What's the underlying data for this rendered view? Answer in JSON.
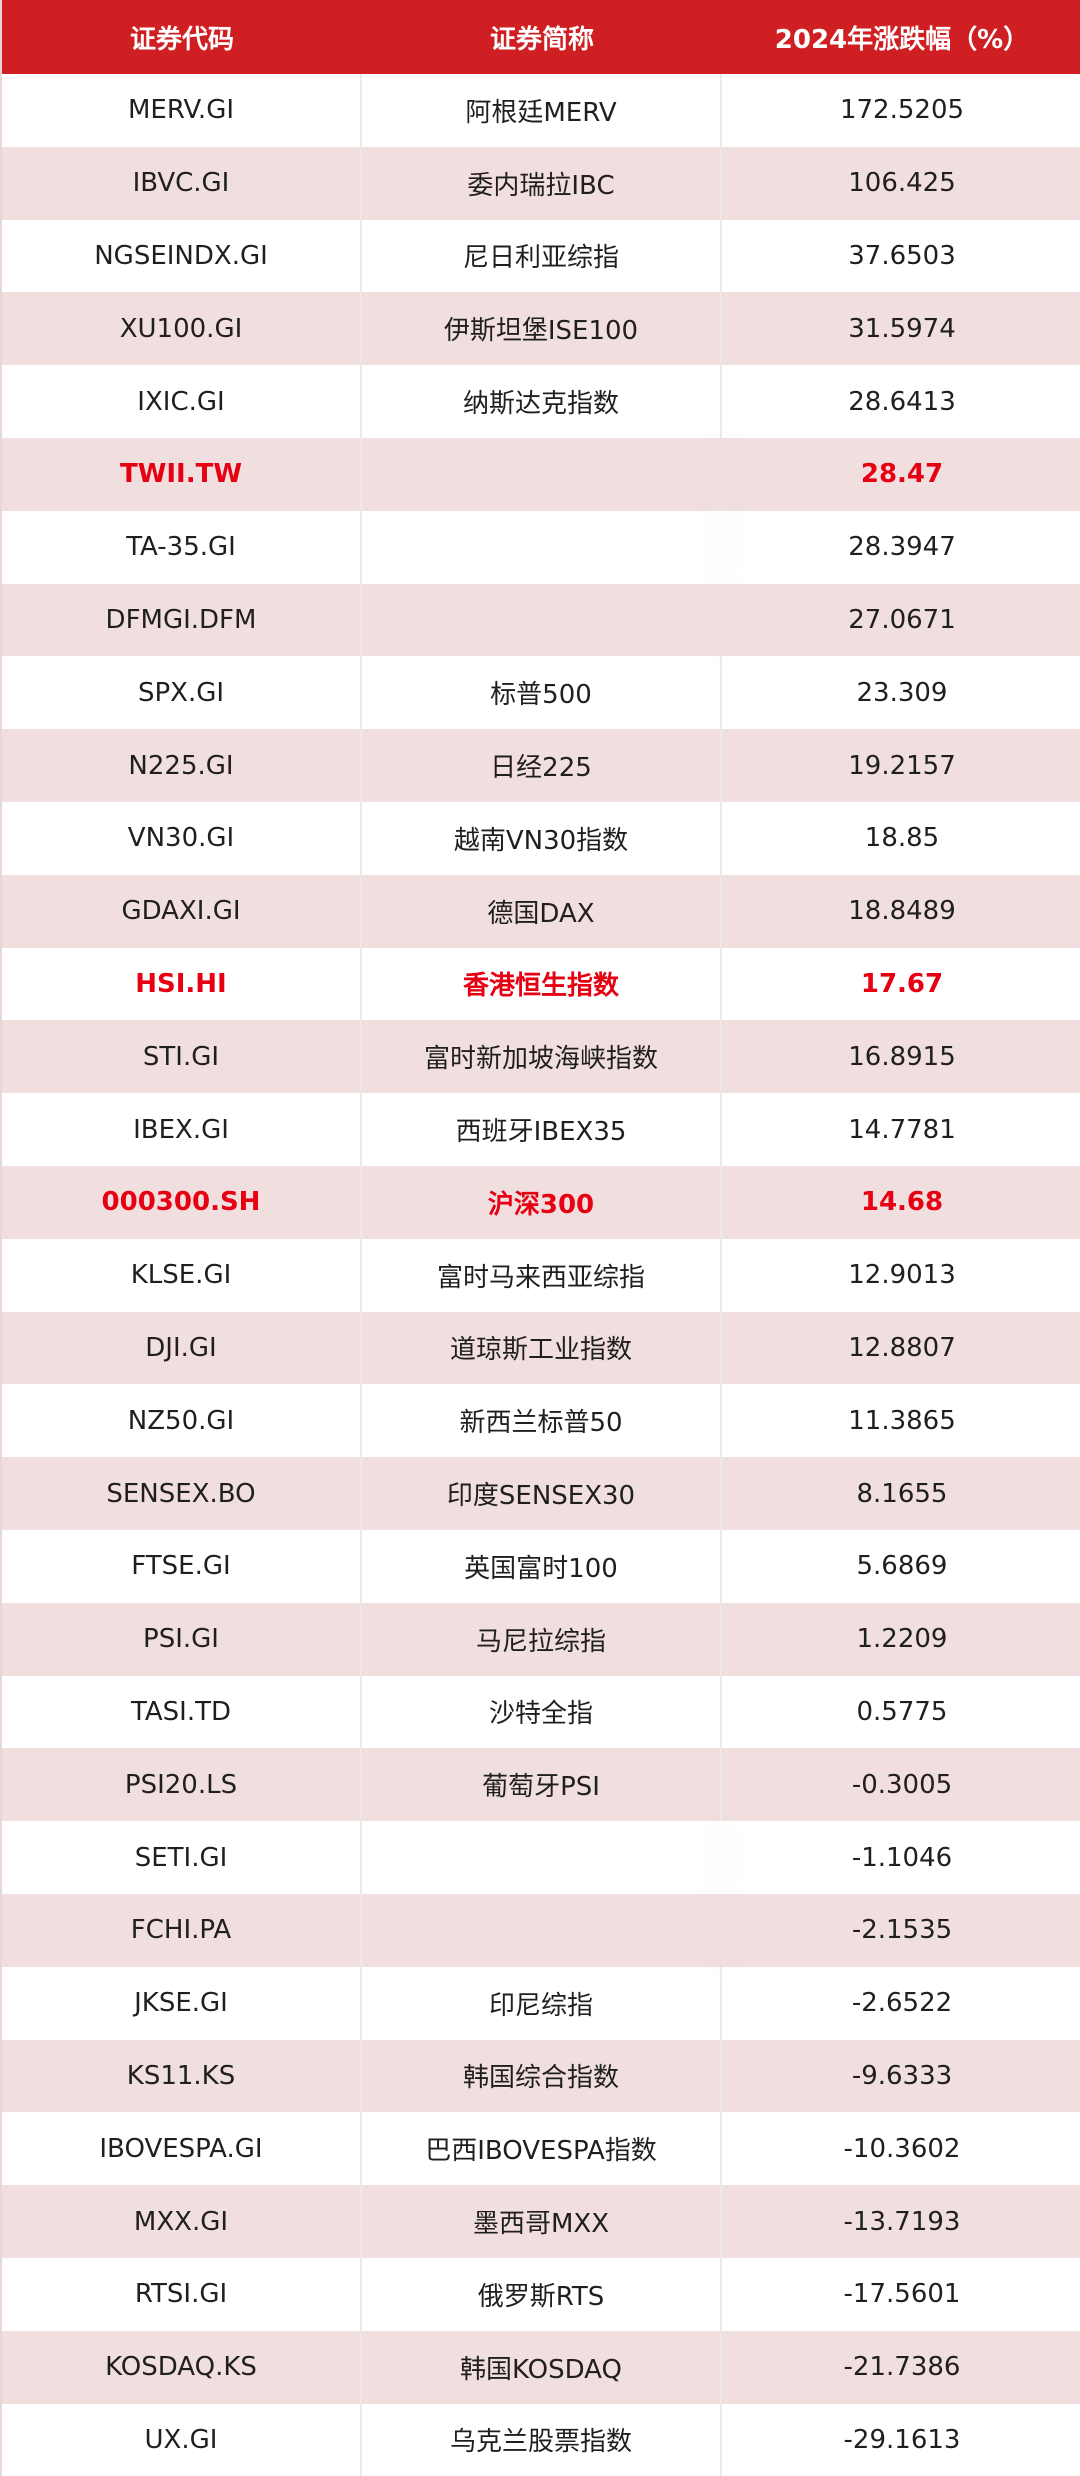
{
  "header": {
    "col1": "证券代码",
    "col2": "证券简称",
    "col3": "2024年涨跌幅（%）"
  },
  "colors": {
    "header_bg": "#cf1f22",
    "highlight_text": "#e60012",
    "stripe_bg": "#f1dede"
  },
  "rows": [
    {
      "code": "MERV.GI",
      "name": "阿根廷MERV",
      "change": "172.5205",
      "highlight": false,
      "blur_name": false
    },
    {
      "code": "IBVC.GI",
      "name": "委内瑞拉IBC",
      "change": "106.425",
      "highlight": false,
      "blur_name": false
    },
    {
      "code": "NGSEINDX.GI",
      "name": "尼日利亚综指",
      "change": "37.6503",
      "highlight": false,
      "blur_name": false
    },
    {
      "code": "XU100.GI",
      "name": "伊斯坦堡ISE100",
      "change": "31.5974",
      "highlight": false,
      "blur_name": false
    },
    {
      "code": "IXIC.GI",
      "name": "纳斯达克指数",
      "change": "28.6413",
      "highlight": false,
      "blur_name": false
    },
    {
      "code": "TWII.TW",
      "name": "",
      "change": "28.47",
      "highlight": true,
      "blur_name": true
    },
    {
      "code": "TA-35.GI",
      "name": "",
      "change": "28.3947",
      "highlight": false,
      "blur_name": true
    },
    {
      "code": "DFMGI.DFM",
      "name": "",
      "change": "27.0671",
      "highlight": false,
      "blur_name": true
    },
    {
      "code": "SPX.GI",
      "name": "标普500",
      "change": "23.309",
      "highlight": false,
      "blur_name": false
    },
    {
      "code": "N225.GI",
      "name": "日经225",
      "change": "19.2157",
      "highlight": false,
      "blur_name": false
    },
    {
      "code": "VN30.GI",
      "name": "越南VN30指数",
      "change": "18.85",
      "highlight": false,
      "blur_name": false
    },
    {
      "code": "GDAXI.GI",
      "name": "德国DAX",
      "change": "18.8489",
      "highlight": false,
      "blur_name": false
    },
    {
      "code": "HSI.HI",
      "name": "香港恒生指数",
      "change": "17.67",
      "highlight": true,
      "blur_name": false
    },
    {
      "code": "STI.GI",
      "name": "富时新加坡海峡指数",
      "change": "16.8915",
      "highlight": false,
      "blur_name": false
    },
    {
      "code": "IBEX.GI",
      "name": "西班牙IBEX35",
      "change": "14.7781",
      "highlight": false,
      "blur_name": false
    },
    {
      "code": "000300.SH",
      "name": "沪深300",
      "change": "14.68",
      "highlight": true,
      "blur_name": false
    },
    {
      "code": "KLSE.GI",
      "name": "富时马来西亚综指",
      "change": "12.9013",
      "highlight": false,
      "blur_name": false
    },
    {
      "code": "DJI.GI",
      "name": "道琼斯工业指数",
      "change": "12.8807",
      "highlight": false,
      "blur_name": false
    },
    {
      "code": "NZ50.GI",
      "name": "新西兰标普50",
      "change": "11.3865",
      "highlight": false,
      "blur_name": false
    },
    {
      "code": "SENSEX.BO",
      "name": "印度SENSEX30",
      "change": "8.1655",
      "highlight": false,
      "blur_name": false
    },
    {
      "code": "FTSE.GI",
      "name": "英国富时100",
      "change": "5.6869",
      "highlight": false,
      "blur_name": false
    },
    {
      "code": "PSI.GI",
      "name": "马尼拉综指",
      "change": "1.2209",
      "highlight": false,
      "blur_name": false
    },
    {
      "code": "TASI.TD",
      "name": "沙特全指",
      "change": "0.5775",
      "highlight": false,
      "blur_name": false
    },
    {
      "code": "PSI20.LS",
      "name": "葡萄牙PSI",
      "change": "-0.3005",
      "highlight": false,
      "blur_name": false
    },
    {
      "code": "SETI.GI",
      "name": "",
      "change": "-1.1046",
      "highlight": false,
      "blur_name": true
    },
    {
      "code": "FCHI.PA",
      "name": "",
      "change": "-2.1535",
      "highlight": false,
      "blur_name": true
    },
    {
      "code": "JKSE.GI",
      "name": "印尼综指",
      "change": "-2.6522",
      "highlight": false,
      "blur_name": false
    },
    {
      "code": "KS11.KS",
      "name": "韩国综合指数",
      "change": "-9.6333",
      "highlight": false,
      "blur_name": false
    },
    {
      "code": "IBOVESPA.GI",
      "name": "巴西IBOVESPA指数",
      "change": "-10.3602",
      "highlight": false,
      "blur_name": false
    },
    {
      "code": "MXX.GI",
      "name": "墨西哥MXX",
      "change": "-13.7193",
      "highlight": false,
      "blur_name": false
    },
    {
      "code": "RTSI.GI",
      "name": "俄罗斯RTS",
      "change": "-17.5601",
      "highlight": false,
      "blur_name": false
    },
    {
      "code": "KOSDAQ.KS",
      "name": "韩国KOSDAQ",
      "change": "-21.7386",
      "highlight": false,
      "blur_name": false
    },
    {
      "code": "UX.GI",
      "name": "乌克兰股票指数",
      "change": "-29.1613",
      "highlight": false,
      "blur_name": false
    }
  ]
}
